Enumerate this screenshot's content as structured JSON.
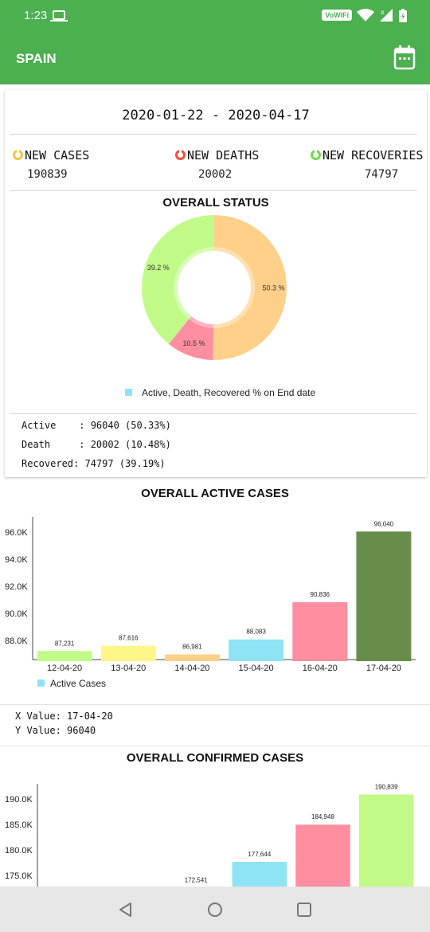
{
  "status_bar": {
    "time": "1:23",
    "network_badge": "VoWiFi",
    "icons": [
      "laptop-icon",
      "wifi-icon",
      "signal-icon",
      "battery-icon"
    ]
  },
  "app_bar": {
    "title": "SPAIN",
    "icon": "calendar-icon"
  },
  "summary": {
    "date_range": "2020-01-22  -  2020-04-17",
    "new_cases": {
      "label": "NEW CASES",
      "value": "190839",
      "color": "#f5c542"
    },
    "new_deaths": {
      "label": "NEW DEATHS",
      "value": "20002",
      "color": "#f04e3e"
    },
    "new_recoveries": {
      "label": "NEW RECOVERIES",
      "value": "74797",
      "color": "#6fdc4a"
    }
  },
  "overall_status": {
    "title": "OVERALL STATUS",
    "legend": "Active, Death, Recovered % on End date",
    "lines": [
      "Active    : 96040 (50.33%)",
      "Death     : 20002 (10.48%)",
      "Recovered: 74797 (39.19%)"
    ]
  },
  "active_section": {
    "title": "OVERALL ACTIVE CASES",
    "legend": "Active Cases",
    "x_value": "X Value: 17-04-20",
    "y_value": "Y Value: 96040"
  },
  "confirmed_section": {
    "title": "OVERALL CONFIRMED CASES"
  },
  "nav": {
    "icons": [
      "back-icon",
      "home-icon",
      "recents-icon"
    ]
  },
  "chart_data": [
    {
      "type": "pie",
      "title": "OVERALL STATUS",
      "categories": [
        "Active",
        "Death",
        "Recovered"
      ],
      "values": [
        50.3,
        10.5,
        39.2
      ],
      "labels": [
        "50.3 %",
        "10.5 %",
        "39.2 %"
      ],
      "colors": [
        "#ffd08a",
        "#ff8fa0",
        "#c2fa8a"
      ],
      "legend": [
        "Active, Death, Recovered % on End date"
      ]
    },
    {
      "type": "bar",
      "title": "OVERALL ACTIVE CASES",
      "categories": [
        "12-04-20",
        "13-04-20",
        "14-04-20",
        "15-04-20",
        "16-04-20",
        "17-04-20"
      ],
      "values": [
        87231,
        87616,
        86981,
        88083,
        90836,
        96040
      ],
      "data_labels": [
        "87,231",
        "87,616",
        "86,981",
        "88,083",
        "90,836",
        "96,040"
      ],
      "colors": [
        "#c2fa8a",
        "#fff68a",
        "#ffd08a",
        "#8ee4f5",
        "#ff8fa0",
        "#688d4a"
      ],
      "yticks": [
        "88.0K",
        "90.0K",
        "92.0K",
        "94.0K",
        "96.0K"
      ],
      "ylim": [
        86600,
        96760
      ],
      "legend": [
        "Active Cases"
      ]
    },
    {
      "type": "bar",
      "title": "OVERALL CONFIRMED CASES",
      "categories": [
        "",
        "",
        "",
        "",
        "",
        ""
      ],
      "values": [
        null,
        null,
        172541,
        177644,
        184948,
        190839
      ],
      "data_labels": [
        "",
        "",
        "172,541",
        "177,644",
        "184,948",
        "190,839"
      ],
      "colors": [
        "#c2fa8a",
        "#fff68a",
        "#ffd08a",
        "#8ee4f5",
        "#ff8fa0",
        "#c2fa8a"
      ],
      "yticks": [
        "175.0K",
        "180.0K",
        "185.0K",
        "190.0K"
      ],
      "ylim": [
        172500,
        192000
      ]
    }
  ]
}
